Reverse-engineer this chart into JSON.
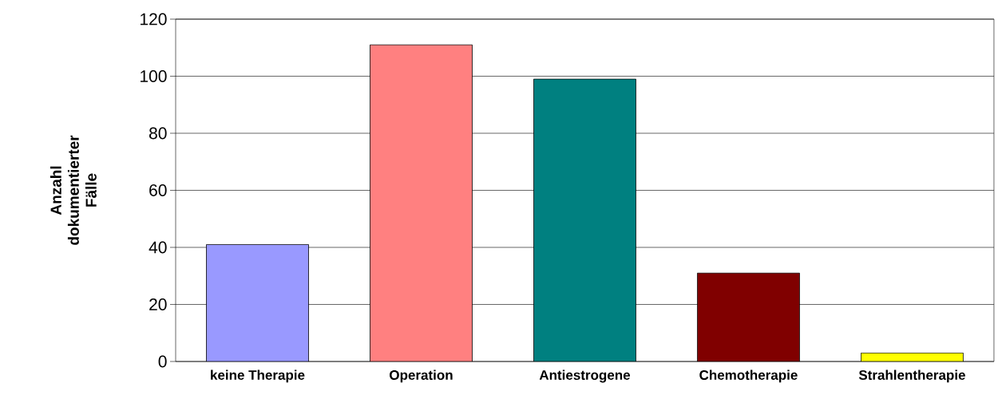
{
  "chart_data": {
    "type": "bar",
    "ylabel": "Anzahl dokumentierter Fälle",
    "categories": [
      "keine Therapie",
      "Operation",
      "Antiestrogene",
      "Chemotherapie",
      "Strahlentherapie"
    ],
    "values": [
      41,
      111,
      99,
      31,
      3
    ],
    "colors": [
      "#9999ff",
      "#ff8080",
      "#008080",
      "#800000",
      "#ffff00"
    ],
    "ylim": [
      0,
      120
    ],
    "yticks": [
      0,
      20,
      40,
      60,
      80,
      100,
      120
    ],
    "grid": "y"
  }
}
